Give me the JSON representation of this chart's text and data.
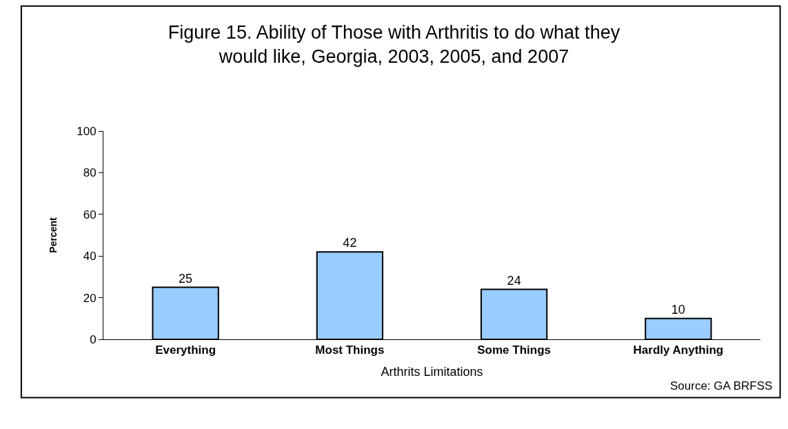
{
  "chart_data": {
    "type": "bar",
    "title": "Figure 15. Ability of Those with Arthritis to do what they would like, Georgia, 2003, 2005, and 2007",
    "xlabel": "Arthrits Limitations",
    "ylabel": "Percent",
    "categories": [
      "Everything",
      "Most Things",
      "Some Things",
      "Hardly Anything"
    ],
    "values": [
      25,
      42,
      24,
      10
    ],
    "color": "#99ccff",
    "ylim": [
      0,
      100
    ],
    "yticks": [
      0,
      20,
      40,
      60,
      80,
      100
    ],
    "grid": false,
    "legend": false,
    "data_labels": true,
    "annotations": [
      "Source: GA BRFSS"
    ]
  }
}
